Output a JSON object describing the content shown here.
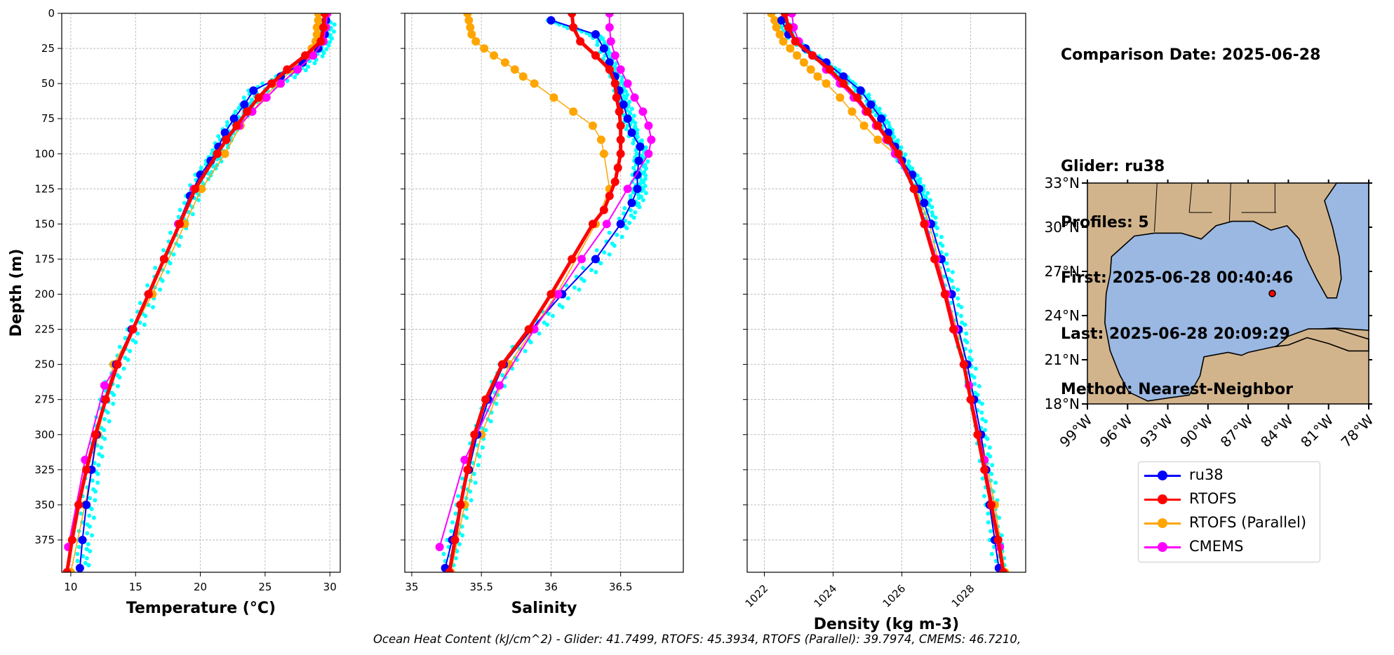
{
  "info": {
    "comparison": "Comparison Date: 2025-06-28",
    "glider": "Glider: ru38",
    "profiles": "Profiles: 5",
    "first": "First: 2025-06-28 00:40:46",
    "last": "Last: 2025-06-28 20:09:29",
    "method": "Method: Nearest-Neighbor"
  },
  "footer": "Ocean Heat Content (kJ/cm^2) - Glider: 41.7499,  RTOFS: 45.3934,  RTOFS (Parallel): 39.7974,  CMEMS: 46.7210,",
  "colors": {
    "ru38": "#0000ff",
    "rtofs": "#ff0000",
    "rtofs_parallel": "#ffa500",
    "cmems": "#ff00ff",
    "raw": "#00ffff",
    "ocean": "#9ab8e2",
    "land": "#d2b48c"
  },
  "legend": [
    {
      "label": "ru38",
      "color": "#0000ff"
    },
    {
      "label": "RTOFS",
      "color": "#ff0000"
    },
    {
      "label": "RTOFS (Parallel)",
      "color": "#ffa500"
    },
    {
      "label": "CMEMS",
      "color": "#ff00ff"
    }
  ],
  "chart_data": [
    {
      "type": "line",
      "id": "temperature",
      "xlabel": "Temperature (°C)",
      "ylabel": "Depth (m)",
      "xlim": [
        9.3,
        30.8
      ],
      "ylim": [
        398,
        0
      ],
      "xticks": [
        10,
        15,
        20,
        25,
        30
      ],
      "yticks": [
        0,
        25,
        50,
        75,
        100,
        125,
        150,
        175,
        200,
        225,
        250,
        275,
        300,
        325,
        350,
        375
      ],
      "grid": true,
      "series": [
        {
          "name": "ru38",
          "depth": [
            5,
            15,
            25,
            35,
            45,
            55,
            65,
            75,
            85,
            95,
            105,
            115,
            130,
            150,
            175,
            200,
            225,
            250,
            275,
            300,
            325,
            350,
            375,
            395
          ],
          "values": [
            29.7,
            29.6,
            29.1,
            27.9,
            26.2,
            24.1,
            23.4,
            22.6,
            21.9,
            21.4,
            20.8,
            20.0,
            19.2,
            18.3,
            17.2,
            16.0,
            14.7,
            13.5,
            12.6,
            12.0,
            11.6,
            11.2,
            10.9,
            10.7
          ]
        },
        {
          "name": "RTOFS",
          "depth": [
            0,
            10,
            20,
            30,
            40,
            50,
            60,
            70,
            80,
            90,
            100,
            125,
            150,
            175,
            200,
            225,
            250,
            275,
            300,
            325,
            350,
            375,
            398
          ],
          "values": [
            29.6,
            29.5,
            29.3,
            28.1,
            26.7,
            25.5,
            24.5,
            23.6,
            22.8,
            22.0,
            21.3,
            19.6,
            18.4,
            17.2,
            16.0,
            14.8,
            13.6,
            12.7,
            11.9,
            11.2,
            10.6,
            10.1,
            9.7
          ]
        },
        {
          "name": "RTOFS (Parallel)",
          "depth": [
            0,
            5,
            10,
            15,
            20,
            25,
            30,
            40,
            50,
            60,
            70,
            80,
            100,
            125,
            150,
            200,
            250,
            300,
            350,
            398
          ],
          "values": [
            29.1,
            29.1,
            29.0,
            29.0,
            28.9,
            28.6,
            28.1,
            27.1,
            26.0,
            24.9,
            24.0,
            23.1,
            21.9,
            20.1,
            18.8,
            16.3,
            13.3,
            12.1,
            11.1,
            10.0
          ]
        },
        {
          "name": "CMEMS",
          "depth": [
            0,
            10,
            20,
            30,
            40,
            50,
            60,
            70,
            80,
            90,
            100,
            125,
            150,
            175,
            200,
            225,
            250,
            265,
            318,
            380
          ],
          "values": [
            29.8,
            29.7,
            29.5,
            28.7,
            27.5,
            26.2,
            25.1,
            24.0,
            23.0,
            22.0,
            21.3,
            19.5,
            18.3,
            17.2,
            16.0,
            14.8,
            13.6,
            12.6,
            11.1,
            9.8
          ]
        }
      ]
    },
    {
      "type": "line",
      "id": "salinity",
      "xlabel": "Salinity",
      "xlim": [
        34.95,
        36.95
      ],
      "ylim": [
        398,
        0
      ],
      "xticks": [
        35.0,
        35.5,
        36.0,
        36.5
      ],
      "grid": true,
      "series": [
        {
          "name": "ru38",
          "depth": [
            5,
            15,
            25,
            35,
            45,
            55,
            65,
            75,
            85,
            95,
            105,
            115,
            125,
            135,
            150,
            175,
            200,
            225,
            250,
            275,
            300,
            325,
            350,
            375,
            395
          ],
          "values": [
            36.0,
            36.32,
            36.38,
            36.42,
            36.46,
            36.49,
            36.52,
            36.55,
            36.58,
            36.64,
            36.63,
            36.62,
            36.62,
            36.58,
            36.5,
            36.32,
            36.08,
            35.86,
            35.66,
            35.55,
            35.47,
            35.41,
            35.35,
            35.29,
            35.24
          ]
        },
        {
          "name": "RTOFS",
          "depth": [
            0,
            10,
            20,
            30,
            40,
            50,
            60,
            70,
            80,
            90,
            100,
            110,
            120,
            130,
            140,
            150,
            175,
            200,
            225,
            250,
            275,
            300,
            325,
            350,
            375,
            398
          ],
          "values": [
            36.15,
            36.16,
            36.21,
            36.32,
            36.42,
            36.46,
            36.47,
            36.49,
            36.5,
            36.5,
            36.5,
            36.48,
            36.46,
            36.42,
            36.38,
            36.3,
            36.15,
            36.0,
            35.84,
            35.65,
            35.53,
            35.45,
            35.4,
            35.35,
            35.31,
            35.27
          ]
        },
        {
          "name": "RTOFS (Parallel)",
          "depth": [
            0,
            5,
            10,
            15,
            20,
            25,
            30,
            35,
            40,
            45,
            50,
            60,
            70,
            80,
            90,
            100,
            125,
            150,
            200,
            250,
            300,
            350,
            398
          ],
          "values": [
            35.4,
            35.41,
            35.42,
            35.43,
            35.46,
            35.52,
            35.59,
            35.67,
            35.74,
            35.8,
            35.88,
            36.02,
            36.16,
            36.3,
            36.36,
            36.38,
            36.42,
            36.32,
            36.04,
            35.7,
            35.5,
            35.38,
            35.28
          ]
        },
        {
          "name": "CMEMS",
          "depth": [
            0,
            10,
            20,
            30,
            40,
            50,
            60,
            70,
            80,
            90,
            100,
            125,
            150,
            175,
            200,
            225,
            265,
            318,
            380
          ],
          "values": [
            36.42,
            36.42,
            36.43,
            36.46,
            36.5,
            36.55,
            36.6,
            36.66,
            36.7,
            36.72,
            36.7,
            36.55,
            36.4,
            36.22,
            36.05,
            35.88,
            35.63,
            35.38,
            35.2
          ]
        }
      ]
    },
    {
      "type": "line",
      "id": "density",
      "xlabel": "Density (kg m-3)",
      "xlim": [
        1021.5,
        1029.6
      ],
      "ylim": [
        398,
        0
      ],
      "xticks": [
        1022,
        1024,
        1026,
        1028
      ],
      "grid": true,
      "series": [
        {
          "name": "ru38",
          "depth": [
            5,
            15,
            25,
            35,
            45,
            55,
            65,
            75,
            85,
            95,
            105,
            115,
            125,
            135,
            150,
            175,
            200,
            225,
            250,
            275,
            300,
            325,
            350,
            375,
            395
          ],
          "values": [
            1022.5,
            1022.7,
            1023.2,
            1023.8,
            1024.3,
            1024.8,
            1025.1,
            1025.4,
            1025.6,
            1025.8,
            1026.0,
            1026.3,
            1026.5,
            1026.65,
            1026.85,
            1027.15,
            1027.45,
            1027.65,
            1027.9,
            1028.1,
            1028.3,
            1028.45,
            1028.55,
            1028.7,
            1028.82
          ]
        },
        {
          "name": "RTOFS",
          "depth": [
            0,
            10,
            20,
            30,
            40,
            50,
            60,
            70,
            80,
            90,
            100,
            125,
            150,
            175,
            200,
            225,
            250,
            275,
            300,
            325,
            350,
            375,
            398
          ],
          "values": [
            1022.6,
            1022.7,
            1022.9,
            1023.4,
            1023.9,
            1024.3,
            1024.7,
            1025.0,
            1025.3,
            1025.6,
            1025.9,
            1026.35,
            1026.65,
            1026.95,
            1027.25,
            1027.5,
            1027.8,
            1028.0,
            1028.2,
            1028.4,
            1028.6,
            1028.8,
            1028.95
          ]
        },
        {
          "name": "RTOFS (Parallel)",
          "depth": [
            0,
            5,
            10,
            15,
            20,
            25,
            30,
            35,
            40,
            45,
            50,
            60,
            70,
            80,
            90,
            100,
            125,
            150,
            200,
            250,
            300,
            350,
            398
          ],
          "values": [
            1022.2,
            1022.3,
            1022.35,
            1022.45,
            1022.55,
            1022.75,
            1022.95,
            1023.15,
            1023.35,
            1023.55,
            1023.8,
            1024.2,
            1024.55,
            1024.9,
            1025.3,
            1025.8,
            1026.4,
            1026.8,
            1027.3,
            1027.9,
            1028.3,
            1028.7,
            1029.0
          ]
        },
        {
          "name": "CMEMS",
          "depth": [
            0,
            10,
            20,
            30,
            40,
            50,
            60,
            70,
            80,
            90,
            100,
            125,
            150,
            175,
            200,
            225,
            265,
            318,
            380
          ],
          "values": [
            1022.8,
            1022.85,
            1023.0,
            1023.4,
            1023.8,
            1024.2,
            1024.6,
            1024.95,
            1025.25,
            1025.55,
            1025.8,
            1026.35,
            1026.7,
            1027.0,
            1027.3,
            1027.55,
            1027.95,
            1028.4,
            1028.85
          ]
        }
      ]
    },
    {
      "type": "map",
      "id": "location-map",
      "lon_range": [
        -99,
        -78
      ],
      "lat_range": [
        18,
        33
      ],
      "xticks": [
        "99°W",
        "96°W",
        "93°W",
        "90°W",
        "87°W",
        "84°W",
        "81°W",
        "78°W"
      ],
      "yticks": [
        "18°N",
        "21°N",
        "24°N",
        "27°N",
        "30°N",
        "33°N"
      ],
      "marker": {
        "lon": -85.2,
        "lat": 25.5
      }
    }
  ]
}
